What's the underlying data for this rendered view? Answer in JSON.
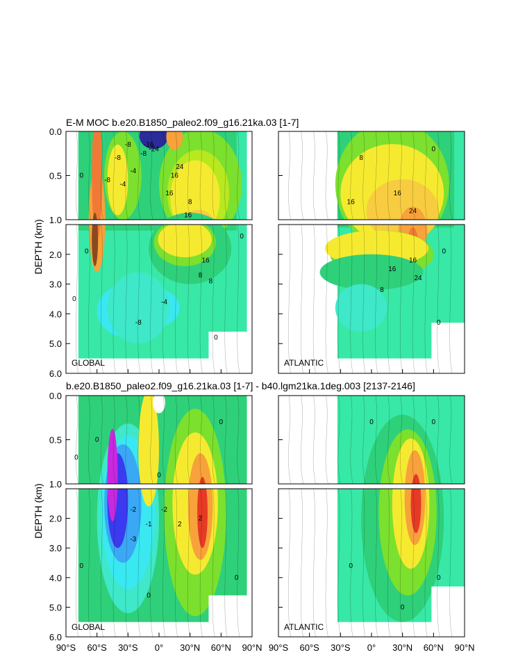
{
  "figure": {
    "title_top": "E-M MOC  b.e20.B1850_paleo2.f09_g16.21ka.03 [1-7]",
    "title_bottom": "b.e20.B1850_paleo2.f09_g16.21ka.03 [1-7] - b40.lgm21ka.1deg.003 [2137-2146]",
    "ylabel": "DEPTH (km)",
    "regions": {
      "global": "GLOBAL",
      "atlantic": "ATLANTIC"
    }
  },
  "chart_data": [
    {
      "type": "heatmap",
      "panel": "top-left",
      "title": "E-M MOC  b.e20.B1850_paleo2.f09_g16.21ka.03 [1-7]",
      "region": "GLOBAL",
      "ylabel": "DEPTH (km)",
      "xlim": [
        -90,
        90
      ],
      "ylim_upper": [
        1.0,
        0.0
      ],
      "ylim_lower": [
        6.0,
        1.0
      ],
      "x_ticks": [
        "90°S",
        "60°S",
        "30°S",
        "0°",
        "30°N",
        "60°N",
        "90°N"
      ],
      "y_ticks_upper": [
        "0.0",
        "0.5",
        "1.0"
      ],
      "y_ticks_lower": [
        "2.0",
        "3.0",
        "4.0",
        "5.0",
        "6.0"
      ],
      "contour_labels": [
        "-8",
        "-8",
        "-4",
        "-4",
        "-8",
        "-16",
        "-24",
        "-8",
        "16",
        "16",
        "24",
        "16",
        "8",
        "16",
        "8",
        "8",
        "-4",
        "-8",
        "0",
        "0",
        "0",
        "0",
        "0"
      ]
    },
    {
      "type": "heatmap",
      "panel": "top-right",
      "region": "ATLANTIC",
      "xlim": [
        -90,
        90
      ],
      "contour_labels": [
        "8",
        "16",
        "16",
        "24",
        "16",
        "24",
        "16",
        "8",
        "0",
        "0",
        "0"
      ]
    },
    {
      "type": "heatmap",
      "panel": "bottom-left",
      "title": "b.e20.B1850_paleo2.f09_g16.21ka.03 [1-7] - b40.lgm21ka.1deg.003 [2137-2146]",
      "region": "GLOBAL",
      "ylabel": "DEPTH (km)",
      "xlim": [
        -90,
        90
      ],
      "x_ticks": [
        "90°S",
        "60°S",
        "30°S",
        "0°",
        "30°N",
        "60°N",
        "90°N"
      ],
      "y_ticks_upper": [
        "0.0",
        "0.5",
        "1.0"
      ],
      "y_ticks_lower": [
        "2.0",
        "3.0",
        "4.0",
        "5.0",
        "6.0"
      ],
      "contour_labels": [
        "0",
        "0",
        "0",
        "-2",
        "-3",
        "-1",
        "-2",
        "2",
        "2",
        "0",
        "0",
        "0",
        "0"
      ]
    },
    {
      "type": "heatmap",
      "panel": "bottom-right",
      "region": "ATLANTIC",
      "xlim": [
        -90,
        90
      ],
      "x_ticks": [
        "90°S",
        "60°S",
        "30°S",
        "0°",
        "30°N",
        "60°N",
        "90°N"
      ],
      "contour_labels": [
        "0",
        "0",
        "0",
        "0",
        "0"
      ]
    }
  ]
}
